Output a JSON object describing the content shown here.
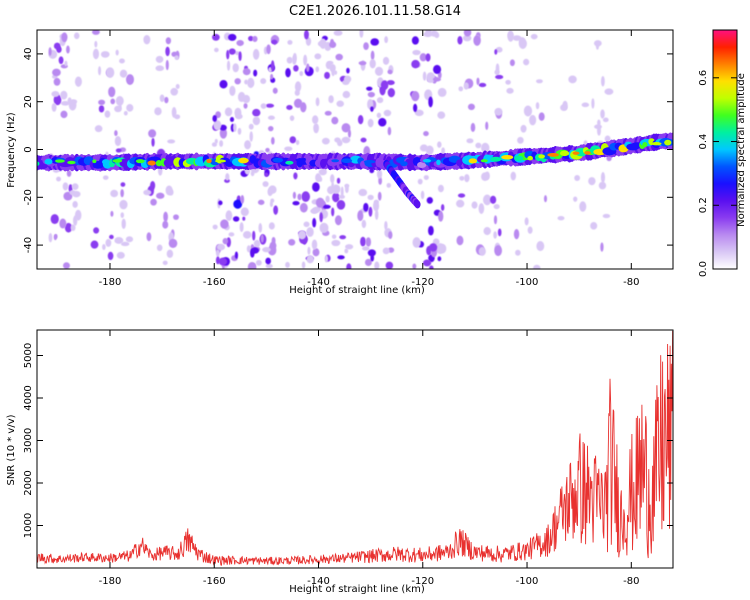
{
  "title": "C2E1.2026.101.11.58.G14",
  "colors": {
    "snr_line": "#e8312f",
    "axis": "#000000",
    "colormap": [
      "#ffffff",
      "#d9c7f5",
      "#b98af0",
      "#8a3cf0",
      "#5a10f0",
      "#1a10ff",
      "#0055ff",
      "#00c8ff",
      "#00f0a0",
      "#40ff20",
      "#c0ff00",
      "#ffe000",
      "#ff8000",
      "#ff2000",
      "#ff1080"
    ]
  },
  "chart_data": [
    {
      "type": "heatmap",
      "title": "C2E1.2026.101.11.58.G14",
      "xlabel": "Height of straight line (km)",
      "ylabel": "Frequency (Hz)",
      "xlim": [
        -194,
        -72
      ],
      "ylim": [
        -50,
        50
      ],
      "x_ticks": [
        -180,
        -160,
        -140,
        -120,
        -100,
        -80
      ],
      "x_tick_labels": [
        "-180",
        "-160",
        "-140",
        "-120",
        "-100",
        "-80"
      ],
      "y_ticks": [
        40,
        20,
        0,
        -20,
        -40
      ],
      "y_tick_labels": [
        "40",
        "20",
        "0",
        "-20",
        "-40"
      ],
      "colorbar": {
        "label": "Normalized spectral amplitude",
        "range": [
          0,
          0.75
        ],
        "ticks": [
          0,
          0.2,
          0.4,
          0.6
        ],
        "tick_labels": [
          "0.0",
          "0.2",
          "0.4",
          "0.6"
        ]
      },
      "ridge": {
        "description": "bright band of high amplitude",
        "x": [
          -194,
          -180,
          -170,
          -160,
          -150,
          -140,
          -130,
          -120,
          -110,
          -100,
          -90,
          -80,
          -74
        ],
        "freq": [
          -5.5,
          -5.5,
          -5,
          -5,
          -5,
          -5,
          -5,
          -5.5,
          -4.5,
          -3,
          -1.5,
          1.5,
          3.5
        ],
        "amplitude": [
          0.35,
          0.45,
          0.55,
          0.62,
          0.35,
          0.3,
          0.42,
          0.3,
          0.45,
          0.5,
          0.6,
          0.62,
          0.5
        ]
      },
      "branch": {
        "x": [
          -127,
          -125,
          -123,
          -121
        ],
        "freq": [
          -6,
          -12,
          -18,
          -23
        ],
        "amplitude": [
          0.3,
          0.3,
          0.25,
          0.2
        ]
      }
    },
    {
      "type": "line",
      "xlabel": "Height of straight line (km)",
      "ylabel": "SNR (10 * v/v)",
      "xlim": [
        -194,
        -72
      ],
      "ylim": [
        0,
        5600
      ],
      "x_ticks": [
        -180,
        -160,
        -140,
        -120,
        -100,
        -80
      ],
      "x_tick_labels": [
        "-180",
        "-160",
        "-140",
        "-120",
        "-100",
        "-80"
      ],
      "y_ticks": [
        1000,
        2000,
        3000,
        4000,
        5000
      ],
      "y_tick_labels": [
        "1000",
        "2000",
        "3000",
        "4000",
        "5000"
      ],
      "series": [
        {
          "name": "SNR",
          "x": [
            -194,
            -190,
            -185,
            -180,
            -176,
            -174,
            -172,
            -170,
            -167,
            -165,
            -163,
            -160,
            -155,
            -150,
            -145,
            -140,
            -135,
            -130,
            -125,
            -120,
            -115,
            -113,
            -110,
            -105,
            -100,
            -96,
            -93,
            -90,
            -87,
            -85,
            -84,
            -82,
            -79,
            -78,
            -76,
            -74,
            -72
          ],
          "values": [
            380,
            320,
            360,
            350,
            430,
            800,
            400,
            550,
            500,
            1000,
            520,
            300,
            280,
            260,
            270,
            310,
            350,
            440,
            520,
            480,
            600,
            1000,
            580,
            520,
            650,
            1050,
            2200,
            3300,
            2800,
            2600,
            4700,
            2200,
            3600,
            4500,
            3200,
            5600,
            5600
          ],
          "min_values": [
            120,
            100,
            140,
            120,
            140,
            300,
            160,
            180,
            160,
            300,
            150,
            60,
            80,
            70,
            80,
            100,
            110,
            120,
            140,
            120,
            160,
            280,
            160,
            120,
            180,
            260,
            500,
            500,
            400,
            300,
            400,
            200,
            300,
            250,
            200,
            250,
            300
          ]
        }
      ]
    }
  ]
}
